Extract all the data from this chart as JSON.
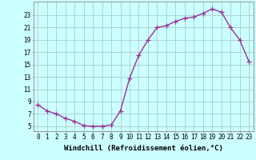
{
  "x": [
    0,
    1,
    2,
    3,
    4,
    5,
    6,
    7,
    8,
    9,
    10,
    11,
    12,
    13,
    14,
    15,
    16,
    17,
    18,
    19,
    20,
    21,
    22,
    23
  ],
  "y": [
    8.5,
    7.5,
    7.0,
    6.3,
    5.8,
    5.1,
    5.0,
    5.0,
    5.2,
    7.5,
    12.8,
    16.5,
    19.0,
    21.0,
    21.3,
    22.0,
    22.5,
    22.7,
    23.3,
    24.0,
    23.5,
    21.0,
    19.0,
    15.5
  ],
  "line_color": "#993399",
  "marker": "+",
  "markersize": 4,
  "linewidth": 1.0,
  "bg_color": "#ccffff",
  "grid_color": "#aacccc",
  "xlabel": "Windchill (Refroidissement éolien,°C)",
  "xlabel_fontsize": 6.5,
  "ytick_labels": [
    "5",
    "7",
    "9",
    "11",
    "13",
    "15",
    "17",
    "19",
    "21",
    "23"
  ],
  "ytick_values": [
    5,
    7,
    9,
    11,
    13,
    15,
    17,
    19,
    21,
    23
  ],
  "ylim": [
    4.2,
    25.2
  ],
  "xlim": [
    -0.5,
    23.5
  ],
  "xtick_labels": [
    "0",
    "1",
    "2",
    "3",
    "4",
    "5",
    "6",
    "7",
    "8",
    "9",
    "10",
    "11",
    "12",
    "13",
    "14",
    "15",
    "16",
    "17",
    "18",
    "19",
    "20",
    "21",
    "22",
    "23"
  ],
  "tick_fontsize": 5.5,
  "xlabel_fontweight": "bold"
}
